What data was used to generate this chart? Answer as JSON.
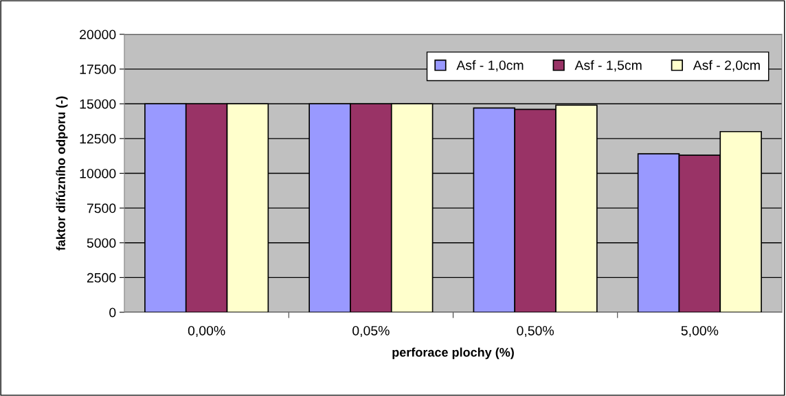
{
  "chart_data": {
    "type": "bar",
    "xlabel": "perforace plochy (%)",
    "ylabel": "faktor difúzního odporu (-)",
    "categories": [
      "0,00%",
      "0,05%",
      "0,50%",
      "5,00%"
    ],
    "series": [
      {
        "name": "Asf - 1,0cm",
        "color": "#9999ff",
        "values": [
          15000,
          15000,
          14700,
          11400
        ]
      },
      {
        "name": "Asf - 1,5cm",
        "color": "#993366",
        "values": [
          15000,
          15000,
          14600,
          11300
        ]
      },
      {
        "name": "Asf - 2,0cm",
        "color": "#ffffcc",
        "values": [
          15000,
          15000,
          14900,
          13000
        ]
      }
    ],
    "ylim": [
      0,
      20000
    ],
    "yticks": [
      0,
      2500,
      5000,
      7500,
      10000,
      12500,
      15000,
      17500,
      20000
    ],
    "grid": "y",
    "legend": "top right"
  }
}
